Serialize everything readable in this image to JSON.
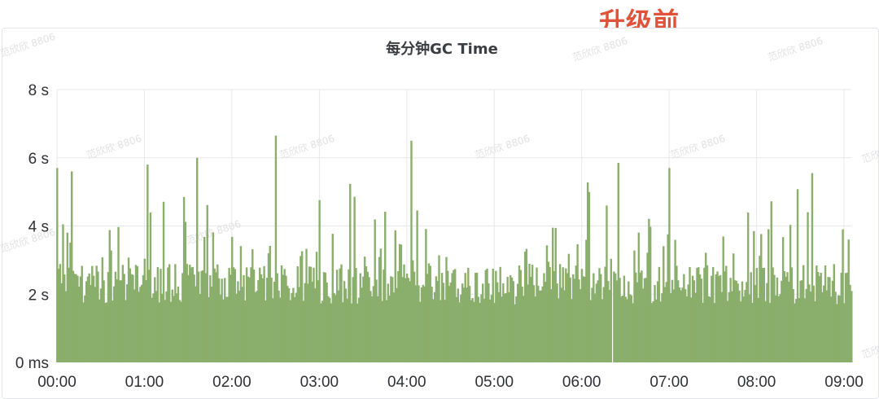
{
  "annotation": "升级前",
  "panel": {
    "title": "每分钟GC Time"
  },
  "watermark": "范欣欣 8806",
  "chart_data": {
    "type": "bar",
    "title": "每分钟GC Time",
    "xlabel": "",
    "ylabel": "",
    "unit": "s",
    "ylim": [
      0,
      8
    ],
    "y_ticks": [
      "0 ms",
      "2 s",
      "4 s",
      "6 s",
      "8 s"
    ],
    "x_ticks": [
      "00:00",
      "01:00",
      "02:00",
      "03:00",
      "04:00",
      "05:00",
      "06:00",
      "07:00",
      "08:00",
      "09:00"
    ],
    "x_range": [
      "00:00",
      "09:05"
    ],
    "grid": true,
    "legend": "none",
    "series_color": "#8aae6b",
    "baseline_mean": 2.3,
    "notable_peaks": [
      {
        "x": "00:00",
        "y": 5.7
      },
      {
        "x": "00:10",
        "y": 5.6
      },
      {
        "x": "01:02",
        "y": 5.8
      },
      {
        "x": "01:36",
        "y": 6.0
      },
      {
        "x": "02:30",
        "y": 6.65
      },
      {
        "x": "04:03",
        "y": 6.5
      },
      {
        "x": "06:25",
        "y": 5.85
      },
      {
        "x": "07:00",
        "y": 5.7
      },
      {
        "x": "08:38",
        "y": 5.55
      }
    ]
  }
}
